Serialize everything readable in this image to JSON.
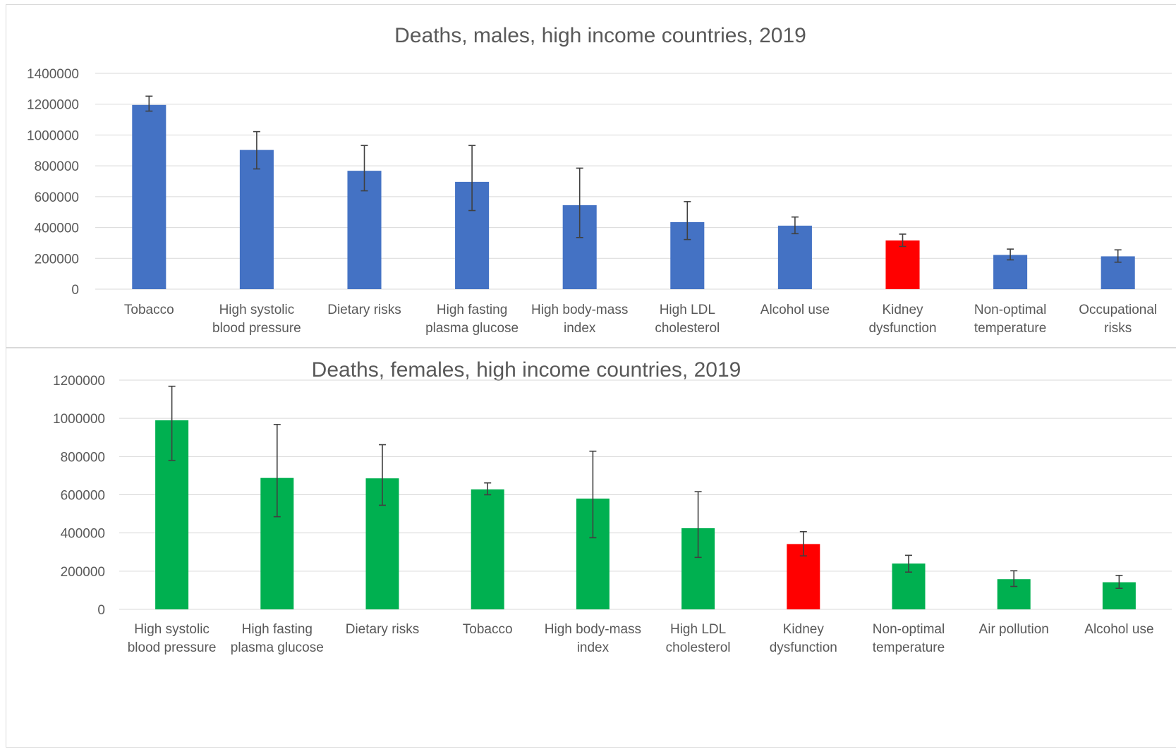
{
  "colors": {
    "male_bar": "#4472C4",
    "female_bar": "#00B050",
    "highlight_bar": "#FF0000",
    "error_bar": "#404040",
    "grid": "#D9D9D9",
    "text": "#595959"
  },
  "chart_data": [
    {
      "type": "bar",
      "title": "Deaths, males, high income countries, 2019",
      "xlabel": "",
      "ylabel": "",
      "ylim": [
        0,
        1400000
      ],
      "yticks": [
        "0",
        "200000",
        "400000",
        "600000",
        "800000",
        "1000000",
        "1200000",
        "1400000"
      ],
      "grid": true,
      "legend": "none",
      "categories": [
        [
          "Tobacco"
        ],
        [
          "High systolic",
          "blood pressure"
        ],
        [
          "Dietary risks"
        ],
        [
          "High fasting",
          "plasma glucose"
        ],
        [
          "High body-mass",
          "index"
        ],
        [
          "High LDL",
          "cholesterol"
        ],
        [
          "Alcohol use"
        ],
        [
          "Kidney",
          "dysfunction"
        ],
        [
          "Non-optimal",
          "temperature"
        ],
        [
          "Occupational",
          "risks"
        ]
      ],
      "values": [
        1195000,
        903000,
        768000,
        696000,
        545000,
        435000,
        412000,
        316000,
        222000,
        213000
      ],
      "error_low": [
        1155000,
        780000,
        638000,
        510000,
        335000,
        322000,
        360000,
        277000,
        190000,
        175000
      ],
      "error_high": [
        1252000,
        1022000,
        932000,
        932000,
        785000,
        568000,
        468000,
        357000,
        260000,
        255000
      ],
      "highlight_index": 7
    },
    {
      "type": "bar",
      "title": "Deaths, females, high income countries, 2019",
      "xlabel": "",
      "ylabel": "",
      "ylim": [
        0,
        1200000
      ],
      "yticks": [
        "0",
        "200000",
        "400000",
        "600000",
        "800000",
        "1000000",
        "1200000"
      ],
      "grid": true,
      "legend": "none",
      "categories": [
        [
          "High systolic",
          "blood pressure"
        ],
        [
          "High fasting",
          "plasma glucose"
        ],
        [
          "Dietary risks"
        ],
        [
          "Tobacco"
        ],
        [
          "High body-mass",
          "index"
        ],
        [
          "High LDL",
          "cholesterol"
        ],
        [
          "Kidney",
          "dysfunction"
        ],
        [
          "Non-optimal",
          "temperature"
        ],
        [
          "Air pollution"
        ],
        [
          "Alcohol use"
        ]
      ],
      "values": [
        990000,
        688000,
        686000,
        628000,
        580000,
        425000,
        342000,
        240000,
        158000,
        142000
      ],
      "error_low": [
        780000,
        485000,
        545000,
        600000,
        375000,
        272000,
        280000,
        195000,
        120000,
        110000
      ],
      "error_high": [
        1168000,
        968000,
        862000,
        662000,
        828000,
        616000,
        407000,
        283000,
        202000,
        178000
      ],
      "highlight_index": 6
    }
  ]
}
